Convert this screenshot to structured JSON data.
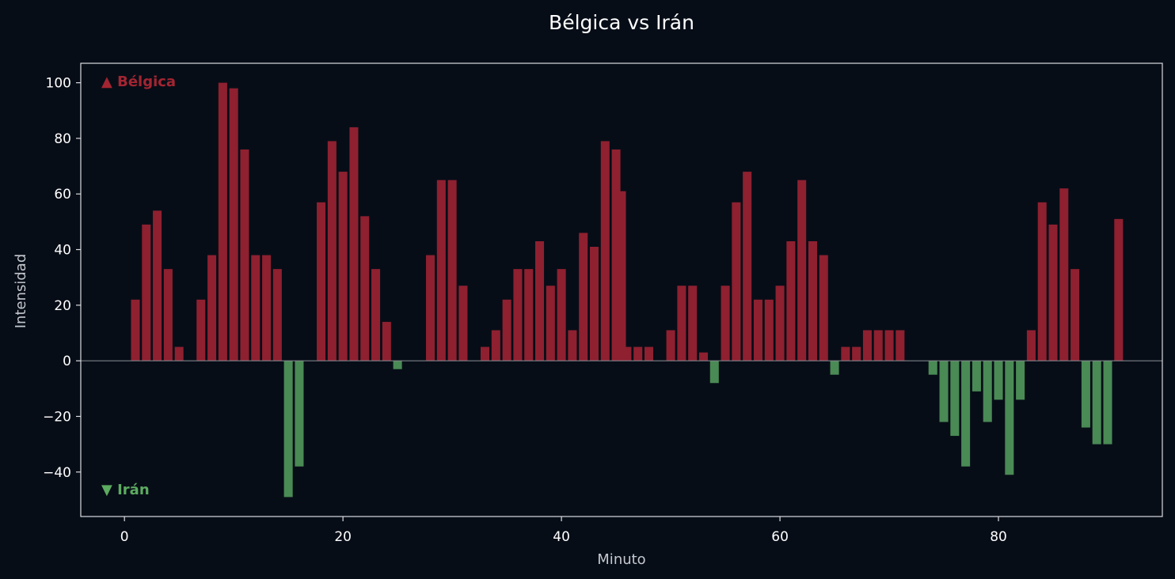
{
  "chart_data": {
    "type": "bar",
    "title": "Bélgica vs Irán",
    "xlabel": "Minuto",
    "ylabel": "Intensidad",
    "xlim": [
      -4,
      95
    ],
    "ylim": [
      -56,
      107
    ],
    "xticks": [
      0,
      20,
      40,
      60,
      80
    ],
    "yticks": [
      -40,
      -20,
      0,
      20,
      40,
      60,
      80,
      100
    ],
    "grid": false,
    "legend": [
      {
        "label": "▲ Bélgica",
        "color": "#a32532",
        "placement": "top-left"
      },
      {
        "label": "▼ Irán",
        "color": "#5cab60",
        "placement": "bottom-left"
      }
    ],
    "colors": {
      "positive": "#8e2030",
      "negative": "#4a8a55",
      "zero_line": "#8b8f95"
    },
    "x": [
      1,
      2,
      3,
      4,
      5,
      7,
      8,
      9,
      10,
      11,
      12,
      13,
      14,
      15,
      16,
      18,
      19,
      20,
      21,
      22,
      23,
      24,
      25,
      28,
      29,
      30,
      31,
      33,
      34,
      35,
      36,
      37,
      38,
      39,
      40,
      41,
      42,
      43,
      44,
      45,
      45.5,
      46,
      47,
      48,
      50,
      51,
      52,
      53,
      54,
      55,
      56,
      57,
      58,
      59,
      60,
      61,
      62,
      63,
      64,
      65,
      66,
      67,
      68,
      69,
      70,
      71,
      74,
      75,
      76,
      77,
      78,
      79,
      80,
      81,
      82,
      83,
      84,
      85,
      86,
      87,
      88,
      89,
      90,
      91
    ],
    "values": [
      22,
      49,
      54,
      33,
      5,
      22,
      38,
      100,
      98,
      76,
      38,
      38,
      33,
      -49,
      -38,
      57,
      79,
      68,
      84,
      52,
      33,
      14,
      -3,
      38,
      65,
      65,
      27,
      5,
      11,
      22,
      33,
      33,
      43,
      27,
      33,
      11,
      46,
      41,
      79,
      76,
      61,
      5,
      5,
      5,
      11,
      27,
      27,
      3,
      -8,
      27,
      57,
      68,
      22,
      22,
      27,
      43,
      65,
      43,
      38,
      -5,
      5,
      5,
      11,
      11,
      11,
      11,
      -5,
      -22,
      -27,
      -38,
      -11,
      -22,
      -14,
      -41,
      -14,
      11,
      57,
      49,
      62,
      33,
      -24,
      -30,
      -30,
      51
    ]
  }
}
